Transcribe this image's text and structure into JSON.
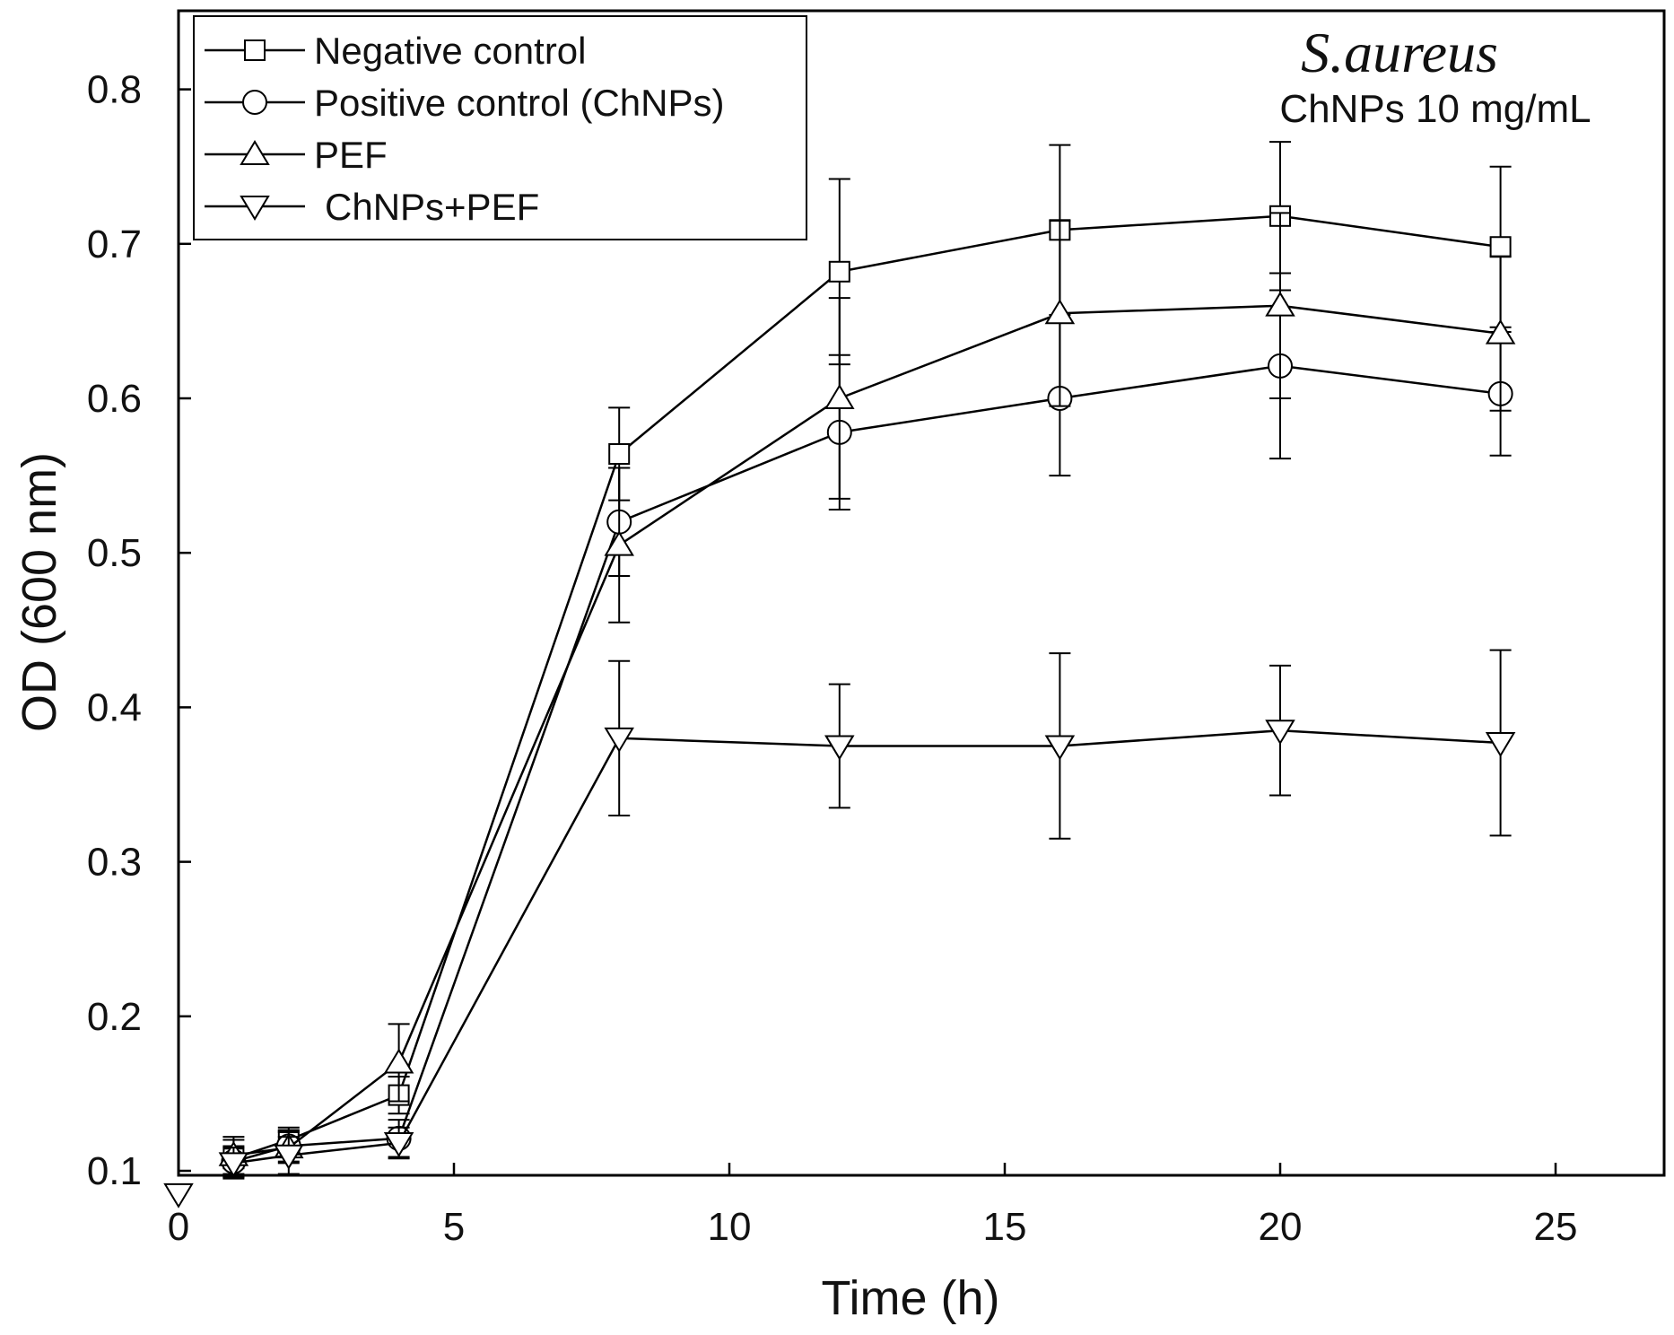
{
  "chart_data": {
    "type": "line",
    "title": "S.aureus",
    "subtitle": "ChNPs 10 mg/mL",
    "xlabel": "Time (h)",
    "ylabel": "OD (600 nm)",
    "xlim": [
      0,
      27
    ],
    "ylim": [
      0.1,
      0.85
    ],
    "xticks": [
      0,
      5,
      10,
      15,
      20,
      25
    ],
    "xtick_labels": [
      "0",
      "5",
      "10",
      "15",
      "20",
      "25"
    ],
    "yticks": [
      0.1,
      0.2,
      0.3,
      0.4,
      0.5,
      0.6,
      0.7,
      0.8
    ],
    "ytick_labels": [
      "0.1",
      "0.2",
      "0.3",
      "0.4",
      "0.5",
      "0.6",
      "0.7",
      "0.8"
    ],
    "legend_position": "top-left",
    "series": [
      {
        "name": "Negative control",
        "marker": "square",
        "x": [
          1,
          2,
          4,
          8,
          12,
          16,
          20,
          24
        ],
        "y": [
          0.108,
          0.12,
          0.149,
          0.564,
          0.682,
          0.709,
          0.718,
          0.698
        ],
        "err": [
          0.012,
          0.008,
          0.012,
          0.03,
          0.06,
          0.055,
          0.048,
          0.052
        ]
      },
      {
        "name": "Positive control (ChNPs)",
        "marker": "circle",
        "x": [
          1,
          2,
          4,
          8,
          12,
          16,
          20,
          24
        ],
        "y": [
          0.106,
          0.116,
          0.121,
          0.52,
          0.578,
          0.6,
          0.621,
          0.603
        ],
        "err": [
          0.01,
          0.01,
          0.012,
          0.035,
          0.05,
          0.05,
          0.06,
          0.04
        ]
      },
      {
        "name": "PEF",
        "marker": "triangle-up",
        "x": [
          1,
          2,
          4,
          8,
          12,
          16,
          20,
          24
        ],
        "y": [
          0.11,
          0.115,
          0.17,
          0.505,
          0.6,
          0.655,
          0.66,
          0.642
        ],
        "err": [
          0.012,
          0.01,
          0.025,
          0.05,
          0.065,
          0.06,
          0.06,
          0.05
        ]
      },
      {
        "name": "ChNPs+PEF",
        "marker": "triangle-down",
        "x": [
          0,
          1,
          2,
          4,
          8,
          12,
          16,
          20,
          24
        ],
        "y": [
          0.085,
          0.105,
          0.11,
          0.118,
          0.38,
          0.375,
          0.375,
          0.385,
          0.377
        ],
        "err": [
          0,
          0.01,
          0.012,
          0.01,
          0.05,
          0.04,
          0.06,
          0.042,
          0.06
        ]
      }
    ]
  }
}
